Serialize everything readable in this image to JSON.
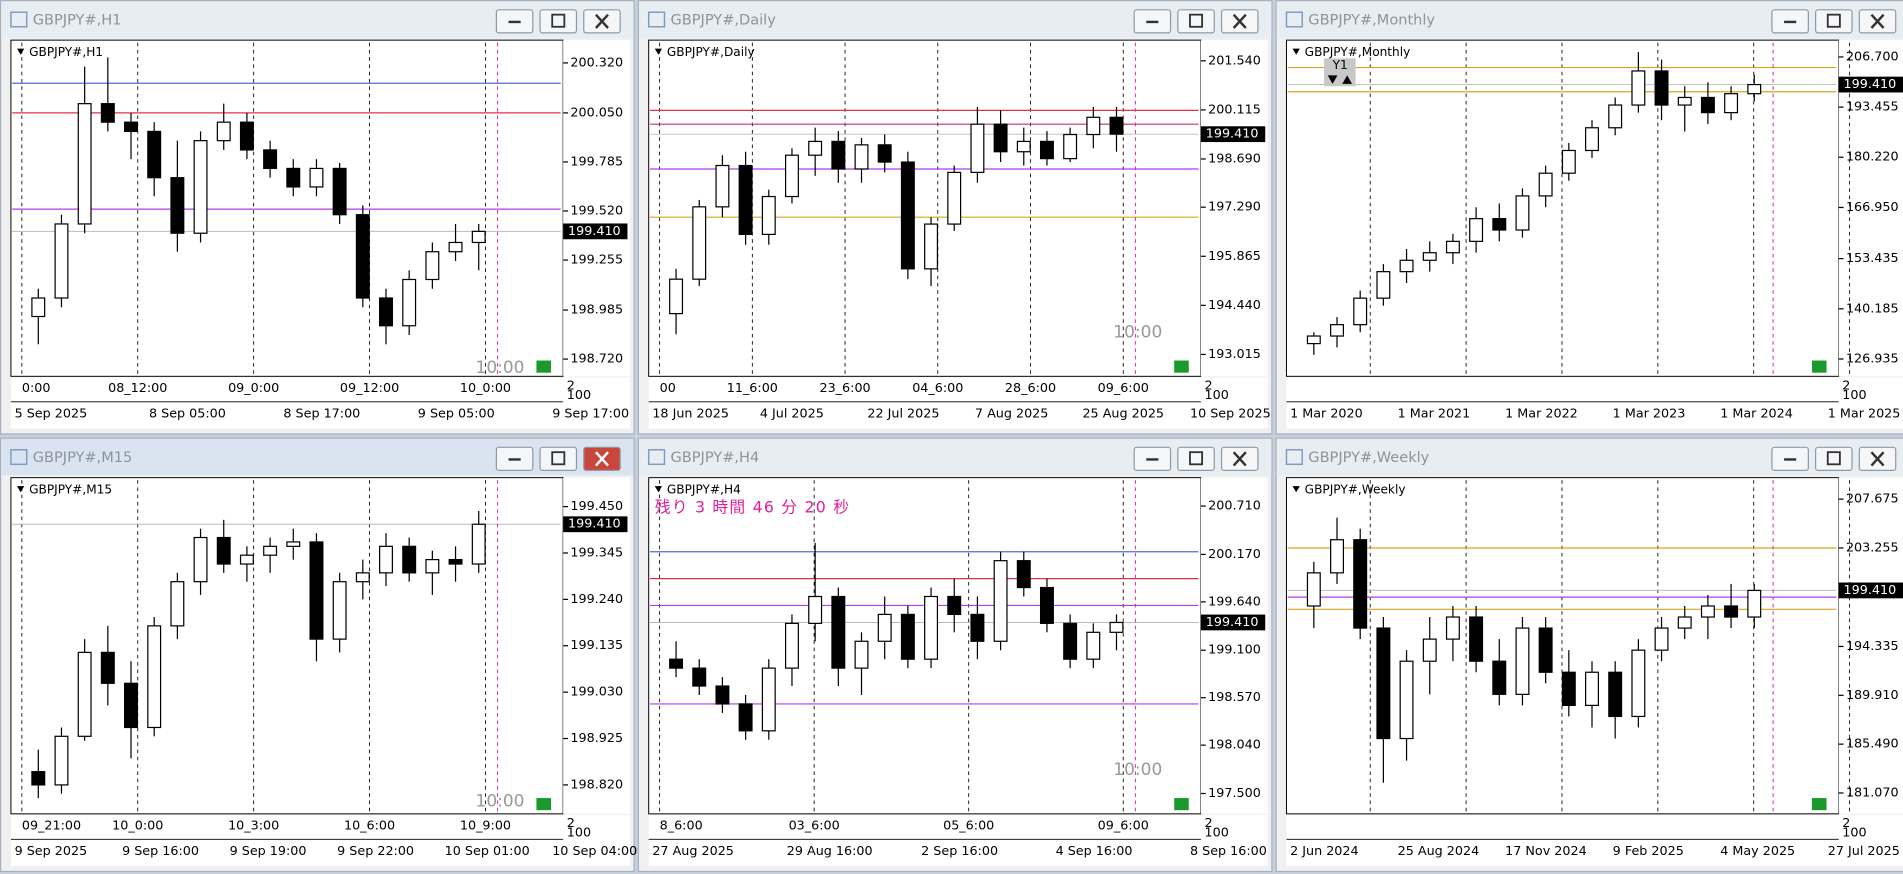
{
  "windows": [
    {
      "title": "GBPJPY#,H1",
      "label": "GBPJPY#,H1",
      "ylim": [
        198.64,
        200.43
      ],
      "yticks": [
        {
          "value": 200.32,
          "label": "200.320"
        },
        {
          "value": 200.05,
          "label": "200.050"
        },
        {
          "value": 199.785,
          "label": "199.785"
        },
        {
          "value": 199.52,
          "label": "199.520"
        },
        {
          "value": 199.255,
          "label": "199.255"
        },
        {
          "value": 198.985,
          "label": "198.985"
        },
        {
          "value": 198.72,
          "label": "198.720"
        }
      ],
      "price": {
        "value": 199.41,
        "label": "199.410"
      },
      "levels": [
        {
          "value": 200.21,
          "color": "#4a6fd8"
        },
        {
          "value": 200.05,
          "color": "#e0304a"
        },
        {
          "value": 199.53,
          "color": "#b43cf0"
        }
      ],
      "top_labels": [
        "0:00",
        "08_12:00",
        "09_0:00",
        "09_12:00",
        "10_0:00"
      ],
      "bottom_labels": [
        "5 Sep 2025",
        "8 Sep 05:00",
        "8 Sep 17:00",
        "9 Sep 05:00",
        "9 Sep 17:00"
      ],
      "notes": [
        "10:00"
      ],
      "corner": [
        "2",
        "100"
      ],
      "candles": [
        [
          198.95,
          199.1,
          198.8,
          199.05
        ],
        [
          199.05,
          199.5,
          199.0,
          199.45
        ],
        [
          199.45,
          200.3,
          199.4,
          200.1
        ],
        [
          200.1,
          200.35,
          199.95,
          200.0
        ],
        [
          200.0,
          200.05,
          199.8,
          199.95
        ],
        [
          199.95,
          200.0,
          199.6,
          199.7
        ],
        [
          199.7,
          199.9,
          199.3,
          199.4
        ],
        [
          199.4,
          199.95,
          199.35,
          199.9
        ],
        [
          199.9,
          200.1,
          199.85,
          200.0
        ],
        [
          200.0,
          200.05,
          199.8,
          199.85
        ],
        [
          199.85,
          199.9,
          199.7,
          199.75
        ],
        [
          199.75,
          199.8,
          199.6,
          199.65
        ],
        [
          199.65,
          199.8,
          199.6,
          199.75
        ],
        [
          199.75,
          199.78,
          199.45,
          199.5
        ],
        [
          199.5,
          199.55,
          199.0,
          199.05
        ],
        [
          199.05,
          199.1,
          198.8,
          198.9
        ],
        [
          198.9,
          199.2,
          198.85,
          199.15
        ],
        [
          199.15,
          199.35,
          199.1,
          199.3
        ],
        [
          199.3,
          199.45,
          199.25,
          199.35
        ],
        [
          199.35,
          199.45,
          199.2,
          199.41
        ]
      ]
    },
    {
      "title": "GBPJPY#,Daily",
      "label": "GBPJPY#,Daily",
      "ylim": [
        192.45,
        202.07
      ],
      "yticks": [
        {
          "value": 201.54,
          "label": "201.540"
        },
        {
          "value": 200.115,
          "label": "200.115"
        },
        {
          "value": 198.69,
          "label": "198.690"
        },
        {
          "value": 197.29,
          "label": "197.290"
        },
        {
          "value": 195.865,
          "label": "195.865"
        },
        {
          "value": 194.44,
          "label": "194.440"
        },
        {
          "value": 193.015,
          "label": "193.015"
        }
      ],
      "price": {
        "value": 199.41,
        "label": "199.410"
      },
      "levels": [
        {
          "value": 200.1,
          "color": "#e0304a"
        },
        {
          "value": 199.7,
          "color": "#c0307a"
        },
        {
          "value": 198.4,
          "color": "#b43cf0"
        },
        {
          "value": 197.0,
          "color": "#d9a520"
        }
      ],
      "top_labels": [
        "00",
        "11_6:00",
        "23_6:00",
        "04_6:00",
        "28_6:00",
        "09_6:00"
      ],
      "bottom_labels": [
        "18 Jun 2025",
        "4 Jul 2025",
        "22 Jul 2025",
        "7 Aug 2025",
        "25 Aug 2025",
        "10 Sep 2025"
      ],
      "notes": [
        "10:00"
      ],
      "corner": [
        "2",
        "100"
      ],
      "candles": [
        [
          194.2,
          195.5,
          193.6,
          195.2
        ],
        [
          195.2,
          197.5,
          195.0,
          197.3
        ],
        [
          197.3,
          198.8,
          197.0,
          198.5
        ],
        [
          198.5,
          198.9,
          196.2,
          196.5
        ],
        [
          196.5,
          197.8,
          196.2,
          197.6
        ],
        [
          197.6,
          199.0,
          197.4,
          198.8
        ],
        [
          198.8,
          199.6,
          198.2,
          199.2
        ],
        [
          199.2,
          199.5,
          198.0,
          198.4
        ],
        [
          198.4,
          199.3,
          198.0,
          199.1
        ],
        [
          199.1,
          199.4,
          198.3,
          198.6
        ],
        [
          198.6,
          198.9,
          195.2,
          195.5
        ],
        [
          195.5,
          197.0,
          195.0,
          196.8
        ],
        [
          196.8,
          198.5,
          196.6,
          198.3
        ],
        [
          198.3,
          200.2,
          198.0,
          199.7
        ],
        [
          199.7,
          200.1,
          198.6,
          198.9
        ],
        [
          198.9,
          199.6,
          198.5,
          199.2
        ],
        [
          199.2,
          199.5,
          198.5,
          198.7
        ],
        [
          198.7,
          199.6,
          198.6,
          199.4
        ],
        [
          199.4,
          200.2,
          199.0,
          199.9
        ],
        [
          199.9,
          200.2,
          198.9,
          199.41
        ]
      ]
    },
    {
      "title": "GBPJPY#,Monthly",
      "label": "GBPJPY#,Monthly",
      "ylim": [
        123.0,
        210.5
      ],
      "yticks": [
        {
          "value": 206.7,
          "label": "206.700"
        },
        {
          "value": 193.455,
          "label": "193.455"
        },
        {
          "value": 180.22,
          "label": "180.220"
        },
        {
          "value": 166.95,
          "label": "166.950"
        },
        {
          "value": 153.435,
          "label": "153.435"
        },
        {
          "value": 140.185,
          "label": "140.185"
        },
        {
          "value": 126.935,
          "label": "126.935"
        }
      ],
      "price": {
        "value": 199.41,
        "label": "199.410"
      },
      "levels": [
        {
          "value": 203.9,
          "color": "#d9a520"
        },
        {
          "value": 197.5,
          "color": "#d9a520"
        }
      ],
      "top_labels": [],
      "bottom_labels": [
        "1 Mar 2020",
        "1 Mar 2021",
        "1 Mar 2022",
        "1 Mar 2023",
        "1 Mar 2024",
        "1 Mar 2025"
      ],
      "notes": [
        "Y1"
      ],
      "corner": [
        "2",
        "100"
      ],
      "candles": [
        [
          131,
          134,
          128,
          133
        ],
        [
          133,
          138,
          130,
          136
        ],
        [
          136,
          145,
          134,
          143
        ],
        [
          143,
          152,
          141,
          150
        ],
        [
          150,
          156,
          147,
          153
        ],
        [
          153,
          158,
          150,
          155
        ],
        [
          155,
          160,
          152,
          158
        ],
        [
          158,
          167,
          155,
          164
        ],
        [
          164,
          168,
          158,
          161
        ],
        [
          161,
          172,
          159,
          170
        ],
        [
          170,
          178,
          167,
          176
        ],
        [
          176,
          184,
          174,
          182
        ],
        [
          182,
          190,
          180,
          188
        ],
        [
          188,
          196,
          186,
          194
        ],
        [
          194,
          208,
          192,
          203
        ],
        [
          203,
          206,
          190,
          194
        ],
        [
          194,
          199,
          187,
          196
        ],
        [
          196,
          200,
          189,
          192
        ],
        [
          192,
          199,
          190,
          197
        ],
        [
          197,
          202,
          195,
          199.41
        ]
      ]
    },
    {
      "title": "GBPJPY#,M15",
      "label": "GBPJPY#,M15",
      "ylim": [
        198.76,
        199.51
      ],
      "yticks": [
        {
          "value": 199.45,
          "label": "199.450"
        },
        {
          "value": 199.345,
          "label": "199.345"
        },
        {
          "value": 199.24,
          "label": "199.240"
        },
        {
          "value": 199.135,
          "label": "199.135"
        },
        {
          "value": 199.03,
          "label": "199.030"
        },
        {
          "value": 198.925,
          "label": "198.925"
        },
        {
          "value": 198.82,
          "label": "198.820"
        }
      ],
      "price": {
        "value": 199.41,
        "label": "199.410"
      },
      "levels": [],
      "top_labels": [
        "09_21:00",
        "10_0:00",
        "10_3:00",
        "10_6:00",
        "10_9:00"
      ],
      "bottom_labels": [
        "9 Sep 2025",
        "9 Sep 16:00",
        "9 Sep 19:00",
        "9 Sep 22:00",
        "10 Sep 01:00",
        "10 Sep 04:00"
      ],
      "notes": [
        "10:00"
      ],
      "corner": [
        "2",
        "100"
      ],
      "candles": [
        [
          198.85,
          198.9,
          198.79,
          198.82
        ],
        [
          198.82,
          198.95,
          198.8,
          198.93
        ],
        [
          198.93,
          199.15,
          198.92,
          199.12
        ],
        [
          199.12,
          199.18,
          199.0,
          199.05
        ],
        [
          199.05,
          199.1,
          198.88,
          198.95
        ],
        [
          198.95,
          199.2,
          198.93,
          199.18
        ],
        [
          199.18,
          199.3,
          199.15,
          199.28
        ],
        [
          199.28,
          199.4,
          199.25,
          199.38
        ],
        [
          199.38,
          199.42,
          199.3,
          199.32
        ],
        [
          199.32,
          199.36,
          199.28,
          199.34
        ],
        [
          199.34,
          199.38,
          199.3,
          199.36
        ],
        [
          199.36,
          199.4,
          199.33,
          199.37
        ],
        [
          199.37,
          199.39,
          199.1,
          199.15
        ],
        [
          199.15,
          199.3,
          199.12,
          199.28
        ],
        [
          199.28,
          199.33,
          199.24,
          199.3
        ],
        [
          199.3,
          199.39,
          199.27,
          199.36
        ],
        [
          199.36,
          199.38,
          199.28,
          199.3
        ],
        [
          199.3,
          199.35,
          199.25,
          199.33
        ],
        [
          199.33,
          199.36,
          199.28,
          199.32
        ],
        [
          199.32,
          199.44,
          199.3,
          199.41
        ]
      ]
    },
    {
      "title": "GBPJPY#,H4",
      "label": "GBPJPY#,H4",
      "ylim": [
        197.3,
        201.0
      ],
      "yticks": [
        {
          "value": 200.71,
          "label": "200.710"
        },
        {
          "value": 200.17,
          "label": "200.170"
        },
        {
          "value": 199.64,
          "label": "199.640"
        },
        {
          "value": 199.1,
          "label": "199.100"
        },
        {
          "value": 198.57,
          "label": "198.570"
        },
        {
          "value": 198.04,
          "label": "198.040"
        },
        {
          "value": 197.5,
          "label": "197.500"
        }
      ],
      "price": {
        "value": 199.41,
        "label": "199.410"
      },
      "levels": [
        {
          "value": 200.2,
          "color": "#4a6fd8"
        },
        {
          "value": 199.9,
          "color": "#e0304a"
        },
        {
          "value": 199.6,
          "color": "#b43cf0"
        },
        {
          "value": 198.5,
          "color": "#b43cf0"
        }
      ],
      "top_labels": [
        "8_6:00",
        "03_6:00",
        "05_6:00",
        "09_6:00"
      ],
      "bottom_labels": [
        "27 Aug 2025",
        "29 Aug 16:00",
        "2 Sep 16:00",
        "4 Sep 16:00",
        "8 Sep 16:00"
      ],
      "notes": [
        "10:00"
      ],
      "countdown": "残り 3 時間 46 分 20 秒",
      "corner": [
        "2",
        "100"
      ],
      "candles": [
        [
          199.0,
          199.2,
          198.8,
          198.9
        ],
        [
          198.9,
          199.0,
          198.6,
          198.7
        ],
        [
          198.7,
          198.8,
          198.4,
          198.5
        ],
        [
          198.5,
          198.6,
          198.1,
          198.2
        ],
        [
          198.2,
          199.0,
          198.1,
          198.9
        ],
        [
          198.9,
          199.5,
          198.7,
          199.4
        ],
        [
          199.4,
          200.3,
          199.2,
          199.7
        ],
        [
          199.7,
          199.8,
          198.7,
          198.9
        ],
        [
          198.9,
          199.3,
          198.6,
          199.2
        ],
        [
          199.2,
          199.7,
          199.0,
          199.5
        ],
        [
          199.5,
          199.6,
          198.9,
          199.0
        ],
        [
          199.0,
          199.8,
          198.9,
          199.7
        ],
        [
          199.7,
          199.9,
          199.3,
          199.5
        ],
        [
          199.5,
          199.7,
          199.0,
          199.2
        ],
        [
          199.2,
          200.2,
          199.1,
          200.1
        ],
        [
          200.1,
          200.2,
          199.7,
          199.8
        ],
        [
          199.8,
          199.9,
          199.3,
          199.4
        ],
        [
          199.4,
          199.5,
          198.9,
          199.0
        ],
        [
          199.0,
          199.4,
          198.9,
          199.3
        ],
        [
          199.3,
          199.5,
          199.1,
          199.41
        ]
      ]
    },
    {
      "title": "GBPJPY#,Weekly",
      "label": "GBPJPY#,Weekly",
      "ylim": [
        179.4,
        209.4
      ],
      "yticks": [
        {
          "value": 207.675,
          "label": "207.675"
        },
        {
          "value": 203.255,
          "label": "203.255"
        },
        {
          "value": 194.335,
          "label": "194.335"
        },
        {
          "value": 189.91,
          "label": "189.910"
        },
        {
          "value": 185.49,
          "label": "185.490"
        },
        {
          "value": 181.07,
          "label": "181.070"
        }
      ],
      "price": {
        "value": 199.41,
        "label": "199.410"
      },
      "levels": [
        {
          "value": 203.25,
          "color": "#d9a520"
        },
        {
          "value": 198.8,
          "color": "#b43cf0"
        },
        {
          "value": 197.7,
          "color": "#d9a520"
        }
      ],
      "top_labels": [],
      "bottom_labels": [
        "2 Jun 2024",
        "25 Aug 2024",
        "17 Nov 2024",
        "9 Feb 2025",
        "4 May 2025",
        "27 Jul 2025"
      ],
      "notes": [],
      "corner": [
        "2",
        "100"
      ],
      "candles": [
        [
          198,
          202,
          196,
          201
        ],
        [
          201,
          206,
          200,
          204
        ],
        [
          204,
          205,
          195,
          196
        ],
        [
          196,
          197,
          182,
          186
        ],
        [
          186,
          194,
          184,
          193
        ],
        [
          193,
          197,
          190,
          195
        ],
        [
          195,
          198,
          193,
          197
        ],
        [
          197,
          198,
          192,
          193
        ],
        [
          193,
          195,
          189,
          190
        ],
        [
          190,
          197,
          189,
          196
        ],
        [
          196,
          197,
          191,
          192
        ],
        [
          192,
          194,
          188,
          189
        ],
        [
          189,
          193,
          187,
          192
        ],
        [
          192,
          193,
          186,
          188
        ],
        [
          188,
          195,
          187,
          194
        ],
        [
          194,
          197,
          193,
          196
        ],
        [
          196,
          198,
          195,
          197
        ],
        [
          197,
          199,
          195,
          198
        ],
        [
          198,
          200,
          196,
          197
        ],
        [
          197,
          200,
          196,
          199.41
        ]
      ]
    }
  ]
}
